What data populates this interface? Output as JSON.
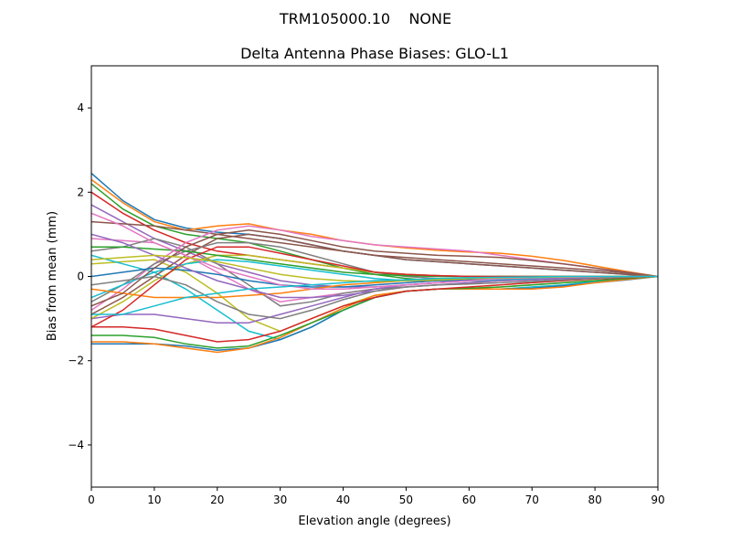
{
  "chart_data": {
    "type": "line",
    "suptitle": "TRM105000.10    NONE",
    "title": "Delta Antenna Phase Biases: GLO-L1",
    "xlabel": "Elevation angle (degrees)",
    "ylabel": "Bias from mean (mm)",
    "xlim": [
      0,
      90
    ],
    "ylim": [
      -5,
      5
    ],
    "xticks": [
      0,
      10,
      20,
      30,
      40,
      50,
      60,
      70,
      80,
      90
    ],
    "yticks": [
      -4,
      -2,
      0,
      2,
      4
    ],
    "ytick_labels": [
      "−4",
      "−2",
      "0",
      "2",
      "4"
    ],
    "grid": false,
    "colors": [
      "#1f77b4",
      "#ff7f0e",
      "#2ca02c",
      "#d62728",
      "#9467bd",
      "#8c564b",
      "#e377c2",
      "#7f7f7f",
      "#bcbd22",
      "#17becf"
    ],
    "x": [
      0,
      5,
      10,
      15,
      20,
      25,
      30,
      35,
      40,
      45,
      50,
      55,
      60,
      65,
      70,
      75,
      80,
      85,
      90
    ],
    "series": [
      {
        "values": [
          2.45,
          1.8,
          1.35,
          1.15,
          1.05,
          1.0,
          0.9,
          0.75,
          0.6,
          0.5,
          0.4,
          0.35,
          0.3,
          0.25,
          0.2,
          0.15,
          0.1,
          0.05,
          0
        ]
      },
      {
        "values": [
          2.3,
          1.75,
          1.3,
          1.1,
          1.2,
          1.25,
          1.1,
          1.0,
          0.85,
          0.75,
          0.68,
          0.62,
          0.58,
          0.55,
          0.48,
          0.38,
          0.25,
          0.12,
          0
        ]
      },
      {
        "values": [
          2.2,
          1.6,
          1.2,
          1.0,
          0.9,
          0.8,
          0.6,
          0.4,
          0.2,
          0.05,
          -0.05,
          -0.1,
          -0.1,
          -0.1,
          -0.08,
          -0.05,
          -0.03,
          -0.01,
          0
        ]
      },
      {
        "values": [
          2.0,
          1.5,
          1.1,
          0.8,
          0.6,
          0.5,
          0.4,
          0.3,
          0.2,
          0.1,
          0.05,
          0.02,
          0.0,
          -0.02,
          -0.02,
          -0.01,
          0,
          0,
          0
        ]
      },
      {
        "values": [
          1.7,
          1.3,
          0.9,
          0.6,
          0.3,
          0.1,
          -0.1,
          -0.2,
          -0.25,
          -0.25,
          -0.2,
          -0.15,
          -0.1,
          -0.08,
          -0.05,
          -0.03,
          -0.02,
          -0.01,
          0
        ]
      },
      {
        "values": [
          1.3,
          1.25,
          1.2,
          1.1,
          1.0,
          0.9,
          0.8,
          0.7,
          0.6,
          0.5,
          0.45,
          0.4,
          0.35,
          0.3,
          0.25,
          0.2,
          0.15,
          0.08,
          0
        ]
      },
      {
        "values": [
          0.9,
          0.85,
          0.8,
          0.5,
          0.1,
          -0.3,
          -0.6,
          -0.5,
          -0.4,
          -0.3,
          -0.2,
          -0.15,
          -0.1,
          -0.08,
          -0.05,
          -0.03,
          -0.02,
          -0.01,
          0
        ]
      },
      {
        "values": [
          0.6,
          0.7,
          0.9,
          0.7,
          0.3,
          -0.2,
          -0.7,
          -0.6,
          -0.4,
          -0.3,
          -0.25,
          -0.2,
          -0.15,
          -0.1,
          -0.05,
          -0.03,
          -0.02,
          -0.01,
          0
        ]
      },
      {
        "values": [
          0.3,
          0.35,
          0.4,
          0.1,
          -0.4,
          -1.0,
          -1.3,
          -1.0,
          -0.7,
          -0.45,
          -0.35,
          -0.3,
          -0.28,
          -0.25,
          -0.2,
          -0.15,
          -0.1,
          -0.05,
          0
        ]
      },
      {
        "values": [
          0.5,
          0.3,
          0.1,
          -0.3,
          -0.8,
          -1.3,
          -1.5,
          -1.2,
          -0.8,
          -0.5,
          -0.35,
          -0.3,
          -0.3,
          -0.3,
          -0.25,
          -0.2,
          -0.12,
          -0.06,
          0
        ]
      },
      {
        "values": [
          -1.6,
          -1.6,
          -1.6,
          -1.65,
          -1.75,
          -1.7,
          -1.5,
          -1.2,
          -0.8,
          -0.5,
          -0.35,
          -0.3,
          -0.3,
          -0.3,
          -0.28,
          -0.22,
          -0.15,
          -0.08,
          0
        ]
      },
      {
        "values": [
          -1.55,
          -1.55,
          -1.6,
          -1.7,
          -1.8,
          -1.7,
          -1.45,
          -1.1,
          -0.75,
          -0.45,
          -0.35,
          -0.3,
          -0.3,
          -0.3,
          -0.3,
          -0.25,
          -0.15,
          -0.07,
          0
        ]
      },
      {
        "values": [
          -1.4,
          -1.4,
          -1.45,
          -1.6,
          -1.7,
          -1.65,
          -1.4,
          -1.1,
          -0.8,
          -0.5,
          -0.35,
          -0.3,
          -0.28,
          -0.25,
          -0.2,
          -0.15,
          -0.1,
          -0.05,
          0
        ]
      },
      {
        "values": [
          -1.2,
          -1.2,
          -1.25,
          -1.4,
          -1.55,
          -1.5,
          -1.3,
          -1.0,
          -0.7,
          -0.5,
          -0.35,
          -0.3,
          -0.25,
          -0.2,
          -0.15,
          -0.1,
          -0.06,
          -0.03,
          0
        ]
      },
      {
        "values": [
          -1.0,
          -0.9,
          -0.9,
          -1.0,
          -1.1,
          -1.1,
          -0.9,
          -0.7,
          -0.5,
          -0.3,
          -0.2,
          -0.15,
          -0.1,
          -0.08,
          -0.05,
          -0.03,
          -0.02,
          -0.01,
          0
        ]
      },
      {
        "values": [
          -0.9,
          -0.5,
          0.0,
          0.5,
          0.9,
          1.0,
          0.9,
          0.75,
          0.6,
          0.5,
          0.4,
          0.35,
          0.3,
          0.25,
          0.2,
          0.15,
          0.1,
          0.05,
          0
        ]
      },
      {
        "values": [
          -0.8,
          -0.3,
          0.3,
          0.8,
          1.1,
          1.2,
          1.1,
          0.95,
          0.85,
          0.75,
          0.7,
          0.65,
          0.6,
          0.5,
          0.4,
          0.3,
          0.2,
          0.1,
          0
        ]
      },
      {
        "values": [
          -0.6,
          -0.2,
          0.3,
          0.6,
          0.8,
          0.8,
          0.7,
          0.5,
          0.3,
          0.1,
          0.0,
          -0.05,
          -0.1,
          -0.1,
          -0.08,
          -0.05,
          -0.03,
          -0.01,
          0
        ]
      },
      {
        "values": [
          -1.0,
          -0.6,
          -0.1,
          0.3,
          0.5,
          0.5,
          0.4,
          0.3,
          0.2,
          0.1,
          0.05,
          0.02,
          0,
          0,
          0,
          0,
          0,
          0,
          0
        ]
      },
      {
        "values": [
          -0.5,
          -0.2,
          0.1,
          0.3,
          0.4,
          0.35,
          0.25,
          0.15,
          0.05,
          -0.05,
          -0.1,
          -0.1,
          -0.1,
          -0.08,
          -0.05,
          -0.03,
          -0.02,
          -0.01,
          0
        ]
      },
      {
        "values": [
          0.0,
          0.1,
          0.2,
          0.15,
          0.05,
          -0.1,
          -0.2,
          -0.25,
          -0.25,
          -0.2,
          -0.15,
          -0.1,
          -0.08,
          -0.05,
          -0.03,
          -0.02,
          -0.01,
          0,
          0
        ]
      },
      {
        "values": [
          -0.3,
          -0.4,
          -0.5,
          -0.5,
          -0.5,
          -0.45,
          -0.4,
          -0.3,
          -0.2,
          -0.15,
          -0.1,
          -0.08,
          -0.05,
          -0.03,
          -0.02,
          -0.01,
          0,
          0,
          0
        ]
      },
      {
        "values": [
          0.7,
          0.7,
          0.65,
          0.6,
          0.5,
          0.4,
          0.3,
          0.2,
          0.1,
          0.05,
          0.02,
          0,
          0,
          0,
          0,
          0,
          0,
          0,
          0
        ]
      },
      {
        "values": [
          -1.2,
          -0.8,
          -0.2,
          0.4,
          0.7,
          0.7,
          0.55,
          0.4,
          0.25,
          0.1,
          0.05,
          0.02,
          0,
          0,
          0,
          0,
          0,
          0,
          0
        ]
      },
      {
        "values": [
          1.0,
          0.8,
          0.5,
          0.2,
          -0.1,
          -0.3,
          -0.5,
          -0.5,
          -0.45,
          -0.35,
          -0.25,
          -0.2,
          -0.15,
          -0.1,
          -0.08,
          -0.05,
          -0.03,
          -0.01,
          0
        ]
      },
      {
        "values": [
          -0.7,
          -0.4,
          0.2,
          0.7,
          1.0,
          1.1,
          1.0,
          0.85,
          0.7,
          0.6,
          0.55,
          0.5,
          0.48,
          0.45,
          0.38,
          0.3,
          0.2,
          0.1,
          0
        ]
      },
      {
        "values": [
          1.5,
          1.2,
          0.8,
          0.5,
          0.2,
          0.0,
          -0.2,
          -0.3,
          -0.3,
          -0.25,
          -0.2,
          -0.15,
          -0.1,
          -0.05,
          -0.03,
          -0.02,
          -0.01,
          0,
          0
        ]
      },
      {
        "values": [
          -0.2,
          -0.1,
          0.0,
          -0.2,
          -0.6,
          -0.9,
          -1.0,
          -0.8,
          -0.55,
          -0.35,
          -0.25,
          -0.2,
          -0.18,
          -0.15,
          -0.12,
          -0.08,
          -0.05,
          -0.02,
          0
        ]
      },
      {
        "values": [
          0.4,
          0.45,
          0.5,
          0.45,
          0.35,
          0.2,
          0.05,
          -0.05,
          -0.1,
          -0.12,
          -0.1,
          -0.08,
          -0.05,
          -0.03,
          -0.02,
          -0.01,
          0,
          0,
          0
        ]
      },
      {
        "values": [
          -0.9,
          -0.9,
          -0.7,
          -0.5,
          -0.4,
          -0.3,
          -0.25,
          -0.2,
          -0.15,
          -0.1,
          -0.08,
          -0.05,
          -0.03,
          -0.02,
          -0.01,
          0,
          0,
          0,
          0
        ]
      }
    ]
  }
}
